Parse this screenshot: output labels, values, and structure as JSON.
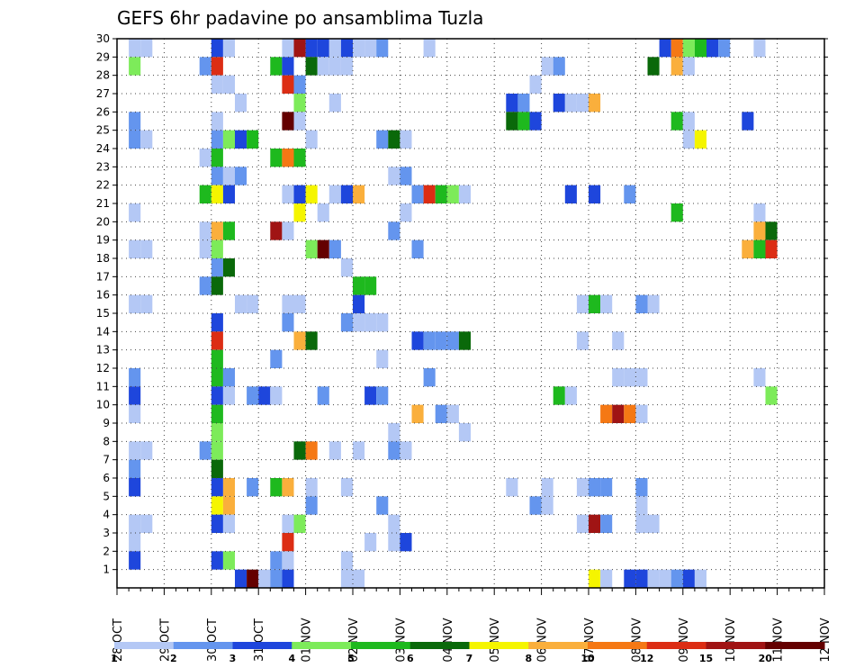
{
  "chart_data": {
    "type": "heatmap",
    "title": "GEFS 6hr padavine po ansamblima Tuzla",
    "xlabel": "",
    "ylabel": "",
    "x_tick_labels": [
      "28 OCT",
      "29 OCT",
      "30 OCT",
      "31 OCT",
      "01 NOV",
      "02 NOV",
      "03 NOV",
      "04 NOV",
      "05 NOV",
      "06 NOV",
      "07 NOV",
      "08 NOV",
      "09 NOV",
      "10 NOV",
      "11 NOV",
      "12 NOV"
    ],
    "y_tick_labels": [
      "1",
      "2",
      "3",
      "4",
      "5",
      "6",
      "7",
      "8",
      "9",
      "10",
      "11",
      "12",
      "13",
      "14",
      "15",
      "16",
      "17",
      "18",
      "19",
      "20",
      "21",
      "22",
      "23",
      "24",
      "25",
      "26",
      "27",
      "28",
      "29",
      "30"
    ],
    "ylim": [
      0,
      30
    ],
    "x_steps_per_day": 4,
    "x_steps_total": 60,
    "grid": true,
    "colorbar": {
      "placement": "bottom",
      "tick_labels": [
        "1",
        "2",
        "3",
        "4",
        "5",
        "6",
        "7",
        "8",
        "10",
        "12",
        "15",
        "20"
      ],
      "colors": [
        "#b4c8f5",
        "#6495ee",
        "#1e46dc",
        "#7deb5a",
        "#1eb91e",
        "#0a690a",
        "#f5f500",
        "#faaf3c",
        "#f57814",
        "#dc2d14",
        "#a01414",
        "#640000"
      ]
    },
    "cells": [
      [
        1,
        30,
        1
      ],
      [
        2,
        30,
        1
      ],
      [
        8,
        30,
        3
      ],
      [
        9,
        30,
        1
      ],
      [
        14,
        30,
        1
      ],
      [
        15,
        30,
        11
      ],
      [
        16,
        30,
        3
      ],
      [
        17,
        30,
        3
      ],
      [
        18,
        30,
        1
      ],
      [
        19,
        30,
        3
      ],
      [
        20,
        30,
        1
      ],
      [
        21,
        30,
        1
      ],
      [
        22,
        30,
        2
      ],
      [
        26,
        30,
        1
      ],
      [
        46,
        30,
        3
      ],
      [
        47,
        30,
        9
      ],
      [
        48,
        30,
        4
      ],
      [
        49,
        30,
        5
      ],
      [
        50,
        30,
        3
      ],
      [
        51,
        30,
        2
      ],
      [
        54,
        30,
        1
      ],
      [
        1,
        29,
        4
      ],
      [
        7,
        29,
        2
      ],
      [
        8,
        29,
        10
      ],
      [
        13,
        29,
        5
      ],
      [
        14,
        29,
        3
      ],
      [
        16,
        29,
        6
      ],
      [
        17,
        29,
        1
      ],
      [
        18,
        29,
        1
      ],
      [
        19,
        29,
        1
      ],
      [
        36,
        29,
        1
      ],
      [
        37,
        29,
        2
      ],
      [
        45,
        29,
        6
      ],
      [
        47,
        29,
        8
      ],
      [
        48,
        29,
        1
      ],
      [
        8,
        28,
        1
      ],
      [
        9,
        28,
        1
      ],
      [
        14,
        28,
        10
      ],
      [
        15,
        28,
        2
      ],
      [
        35,
        28,
        1
      ],
      [
        10,
        27,
        1
      ],
      [
        15,
        27,
        4
      ],
      [
        18,
        27,
        1
      ],
      [
        33,
        27,
        3
      ],
      [
        34,
        27,
        2
      ],
      [
        37,
        27,
        3
      ],
      [
        38,
        27,
        1
      ],
      [
        39,
        27,
        1
      ],
      [
        40,
        27,
        8
      ],
      [
        1,
        26,
        2
      ],
      [
        8,
        26,
        1
      ],
      [
        14,
        26,
        12
      ],
      [
        15,
        26,
        1
      ],
      [
        33,
        26,
        6
      ],
      [
        34,
        26,
        5
      ],
      [
        35,
        26,
        3
      ],
      [
        47,
        26,
        5
      ],
      [
        48,
        26,
        1
      ],
      [
        53,
        26,
        3
      ],
      [
        1,
        25,
        2
      ],
      [
        2,
        25,
        1
      ],
      [
        8,
        25,
        2
      ],
      [
        9,
        25,
        4
      ],
      [
        10,
        25,
        3
      ],
      [
        11,
        25,
        5
      ],
      [
        16,
        25,
        1
      ],
      [
        22,
        25,
        2
      ],
      [
        23,
        25,
        6
      ],
      [
        24,
        25,
        1
      ],
      [
        48,
        25,
        1
      ],
      [
        49,
        25,
        7
      ],
      [
        7,
        24,
        1
      ],
      [
        8,
        24,
        5
      ],
      [
        13,
        24,
        5
      ],
      [
        14,
        24,
        9
      ],
      [
        15,
        24,
        5
      ],
      [
        8,
        23,
        2
      ],
      [
        9,
        23,
        1
      ],
      [
        10,
        23,
        2
      ],
      [
        23,
        23,
        1
      ],
      [
        24,
        23,
        2
      ],
      [
        7,
        22,
        5
      ],
      [
        8,
        22,
        7
      ],
      [
        9,
        22,
        3
      ],
      [
        14,
        22,
        1
      ],
      [
        15,
        22,
        3
      ],
      [
        16,
        22,
        7
      ],
      [
        18,
        22,
        1
      ],
      [
        19,
        22,
        3
      ],
      [
        20,
        22,
        8
      ],
      [
        25,
        22,
        2
      ],
      [
        26,
        22,
        10
      ],
      [
        27,
        22,
        5
      ],
      [
        28,
        22,
        4
      ],
      [
        29,
        22,
        1
      ],
      [
        38,
        22,
        3
      ],
      [
        40,
        22,
        3
      ],
      [
        43,
        22,
        2
      ],
      [
        1,
        21,
        1
      ],
      [
        15,
        21,
        7
      ],
      [
        17,
        21,
        1
      ],
      [
        24,
        21,
        1
      ],
      [
        47,
        21,
        5
      ],
      [
        54,
        21,
        1
      ],
      [
        7,
        20,
        1
      ],
      [
        8,
        20,
        8
      ],
      [
        9,
        20,
        5
      ],
      [
        13,
        20,
        11
      ],
      [
        14,
        20,
        1
      ],
      [
        23,
        20,
        2
      ],
      [
        54,
        20,
        8
      ],
      [
        55,
        20,
        6
      ],
      [
        1,
        19,
        1
      ],
      [
        2,
        19,
        1
      ],
      [
        7,
        19,
        1
      ],
      [
        8,
        19,
        4
      ],
      [
        16,
        19,
        4
      ],
      [
        17,
        19,
        12
      ],
      [
        18,
        19,
        2
      ],
      [
        25,
        19,
        2
      ],
      [
        53,
        19,
        8
      ],
      [
        54,
        19,
        5
      ],
      [
        55,
        19,
        10
      ],
      [
        8,
        18,
        2
      ],
      [
        9,
        18,
        6
      ],
      [
        19,
        18,
        1
      ],
      [
        7,
        17,
        2
      ],
      [
        8,
        17,
        6
      ],
      [
        20,
        17,
        5
      ],
      [
        21,
        17,
        5
      ],
      [
        1,
        16,
        1
      ],
      [
        2,
        16,
        1
      ],
      [
        10,
        16,
        1
      ],
      [
        11,
        16,
        1
      ],
      [
        14,
        16,
        1
      ],
      [
        15,
        16,
        1
      ],
      [
        20,
        16,
        3
      ],
      [
        39,
        16,
        1
      ],
      [
        40,
        16,
        5
      ],
      [
        41,
        16,
        1
      ],
      [
        44,
        16,
        2
      ],
      [
        45,
        16,
        1
      ],
      [
        8,
        15,
        3
      ],
      [
        14,
        15,
        2
      ],
      [
        19,
        15,
        2
      ],
      [
        20,
        15,
        1
      ],
      [
        21,
        15,
        1
      ],
      [
        22,
        15,
        1
      ],
      [
        8,
        14,
        10
      ],
      [
        15,
        14,
        8
      ],
      [
        16,
        14,
        6
      ],
      [
        25,
        14,
        3
      ],
      [
        26,
        14,
        2
      ],
      [
        27,
        14,
        2
      ],
      [
        28,
        14,
        2
      ],
      [
        29,
        14,
        6
      ],
      [
        39,
        14,
        1
      ],
      [
        42,
        14,
        1
      ],
      [
        8,
        13,
        5
      ],
      [
        13,
        13,
        2
      ],
      [
        22,
        13,
        1
      ],
      [
        1,
        12,
        2
      ],
      [
        8,
        12,
        5
      ],
      [
        9,
        12,
        2
      ],
      [
        26,
        12,
        2
      ],
      [
        42,
        12,
        1
      ],
      [
        43,
        12,
        1
      ],
      [
        44,
        12,
        1
      ],
      [
        54,
        12,
        1
      ],
      [
        1,
        11,
        3
      ],
      [
        8,
        11,
        3
      ],
      [
        9,
        11,
        1
      ],
      [
        11,
        11,
        2
      ],
      [
        12,
        11,
        3
      ],
      [
        13,
        11,
        1
      ],
      [
        17,
        11,
        2
      ],
      [
        21,
        11,
        3
      ],
      [
        22,
        11,
        2
      ],
      [
        37,
        11,
        5
      ],
      [
        38,
        11,
        1
      ],
      [
        55,
        11,
        4
      ],
      [
        1,
        10,
        1
      ],
      [
        8,
        10,
        5
      ],
      [
        25,
        10,
        8
      ],
      [
        27,
        10,
        2
      ],
      [
        28,
        10,
        1
      ],
      [
        41,
        10,
        9
      ],
      [
        42,
        10,
        11
      ],
      [
        43,
        10,
        9
      ],
      [
        44,
        10,
        1
      ],
      [
        8,
        9,
        4
      ],
      [
        23,
        9,
        1
      ],
      [
        29,
        9,
        1
      ],
      [
        1,
        8,
        1
      ],
      [
        2,
        8,
        1
      ],
      [
        7,
        8,
        2
      ],
      [
        8,
        8,
        4
      ],
      [
        15,
        8,
        6
      ],
      [
        16,
        8,
        9
      ],
      [
        18,
        8,
        1
      ],
      [
        20,
        8,
        1
      ],
      [
        23,
        8,
        2
      ],
      [
        24,
        8,
        1
      ],
      [
        1,
        7,
        2
      ],
      [
        8,
        7,
        6
      ],
      [
        1,
        6,
        3
      ],
      [
        8,
        6,
        3
      ],
      [
        9,
        6,
        8
      ],
      [
        11,
        6,
        2
      ],
      [
        13,
        6,
        5
      ],
      [
        14,
        6,
        8
      ],
      [
        16,
        6,
        1
      ],
      [
        19,
        6,
        1
      ],
      [
        33,
        6,
        1
      ],
      [
        36,
        6,
        1
      ],
      [
        39,
        6,
        1
      ],
      [
        40,
        6,
        2
      ],
      [
        41,
        6,
        2
      ],
      [
        44,
        6,
        2
      ],
      [
        8,
        5,
        7
      ],
      [
        9,
        5,
        8
      ],
      [
        16,
        5,
        2
      ],
      [
        22,
        5,
        2
      ],
      [
        35,
        5,
        2
      ],
      [
        36,
        5,
        1
      ],
      [
        44,
        5,
        1
      ],
      [
        1,
        4,
        1
      ],
      [
        2,
        4,
        1
      ],
      [
        8,
        4,
        3
      ],
      [
        9,
        4,
        1
      ],
      [
        14,
        4,
        1
      ],
      [
        15,
        4,
        4
      ],
      [
        23,
        4,
        1
      ],
      [
        39,
        4,
        1
      ],
      [
        40,
        4,
        11
      ],
      [
        41,
        4,
        2
      ],
      [
        44,
        4,
        1
      ],
      [
        45,
        4,
        1
      ],
      [
        1,
        3,
        1
      ],
      [
        14,
        3,
        10
      ],
      [
        21,
        3,
        1
      ],
      [
        23,
        3,
        1
      ],
      [
        24,
        3,
        3
      ],
      [
        1,
        2,
        3
      ],
      [
        8,
        2,
        3
      ],
      [
        9,
        2,
        4
      ],
      [
        13,
        2,
        2
      ],
      [
        14,
        2,
        1
      ],
      [
        19,
        2,
        1
      ],
      [
        10,
        1,
        3
      ],
      [
        11,
        1,
        12
      ],
      [
        12,
        1,
        1
      ],
      [
        13,
        1,
        2
      ],
      [
        14,
        1,
        3
      ],
      [
        19,
        1,
        1
      ],
      [
        20,
        1,
        1
      ],
      [
        40,
        1,
        7
      ],
      [
        41,
        1,
        1
      ],
      [
        43,
        1,
        3
      ],
      [
        44,
        1,
        3
      ],
      [
        45,
        1,
        1
      ],
      [
        46,
        1,
        1
      ],
      [
        47,
        1,
        2
      ],
      [
        48,
        1,
        3
      ],
      [
        49,
        1,
        1
      ]
    ]
  }
}
